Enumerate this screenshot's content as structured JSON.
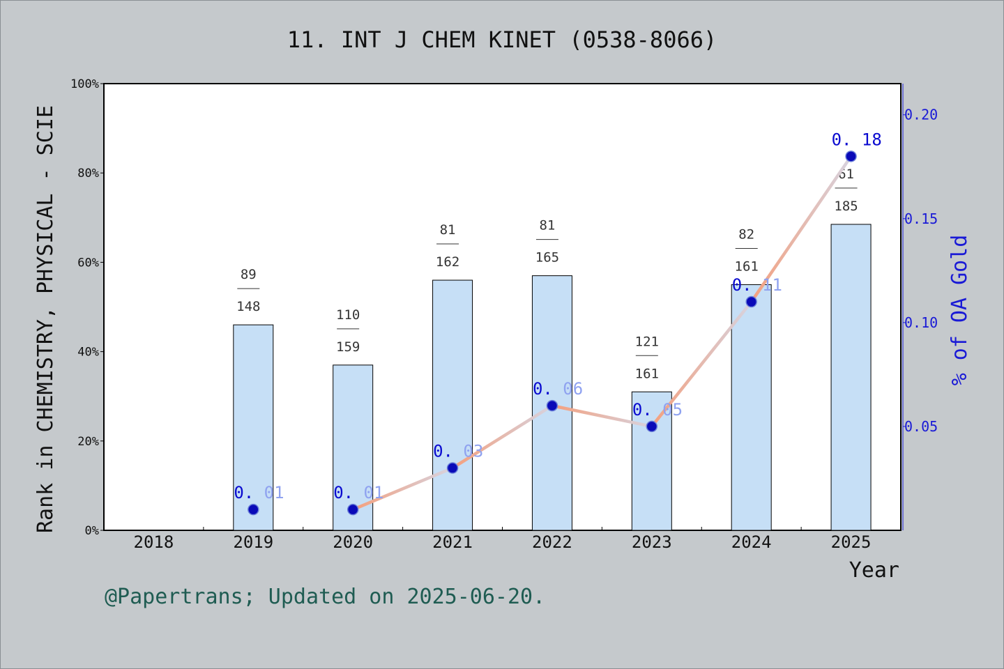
{
  "chart_data": {
    "type": "bar",
    "title": "11. INT J CHEM KINET (0538-8066)",
    "xlabel": "Year",
    "ylabel": "Rank in CHEMISTRY, PHYSICAL - SCIE",
    "y2label": "% of OA Gold",
    "footer": "@Papertrans; Updated on 2025-06-20.",
    "categories": [
      "2018",
      "2019",
      "2020",
      "2021",
      "2022",
      "2023",
      "2024",
      "2025"
    ],
    "ylim": [
      0,
      100
    ],
    "y_ticks": [
      "0%",
      "20%",
      "40%",
      "60%",
      "80%",
      "100%"
    ],
    "y2lim": [
      0,
      0.215
    ],
    "y2_ticks": [
      "0.05",
      "0.10",
      "0.15",
      "0.20"
    ],
    "series": [
      {
        "kind": "bar",
        "values": [
          null,
          46,
          37,
          56,
          57,
          31,
          55,
          68.5
        ],
        "labels": [
          null,
          {
            "rank": "89",
            "total": "148"
          },
          {
            "rank": "110",
            "total": "159"
          },
          {
            "rank": "81",
            "total": "162"
          },
          {
            "rank": "81",
            "total": "165"
          },
          {
            "rank": "121",
            "total": "161"
          },
          {
            "rank": "82",
            "total": "161"
          },
          {
            "rank": "61",
            "total": "185"
          }
        ],
        "color": "#c6dff6"
      },
      {
        "kind": "line",
        "values": [
          null,
          0.01,
          0.01,
          0.03,
          0.06,
          0.05,
          0.11,
          0.18
        ],
        "labels": [
          null,
          "0.01",
          "0.01",
          "0.03",
          "0.06",
          "0.05",
          "0.11",
          "0.18"
        ],
        "line_color": "#f4a07e",
        "marker_color": "#0a0ab8"
      }
    ],
    "grid": false,
    "legend": "none"
  }
}
